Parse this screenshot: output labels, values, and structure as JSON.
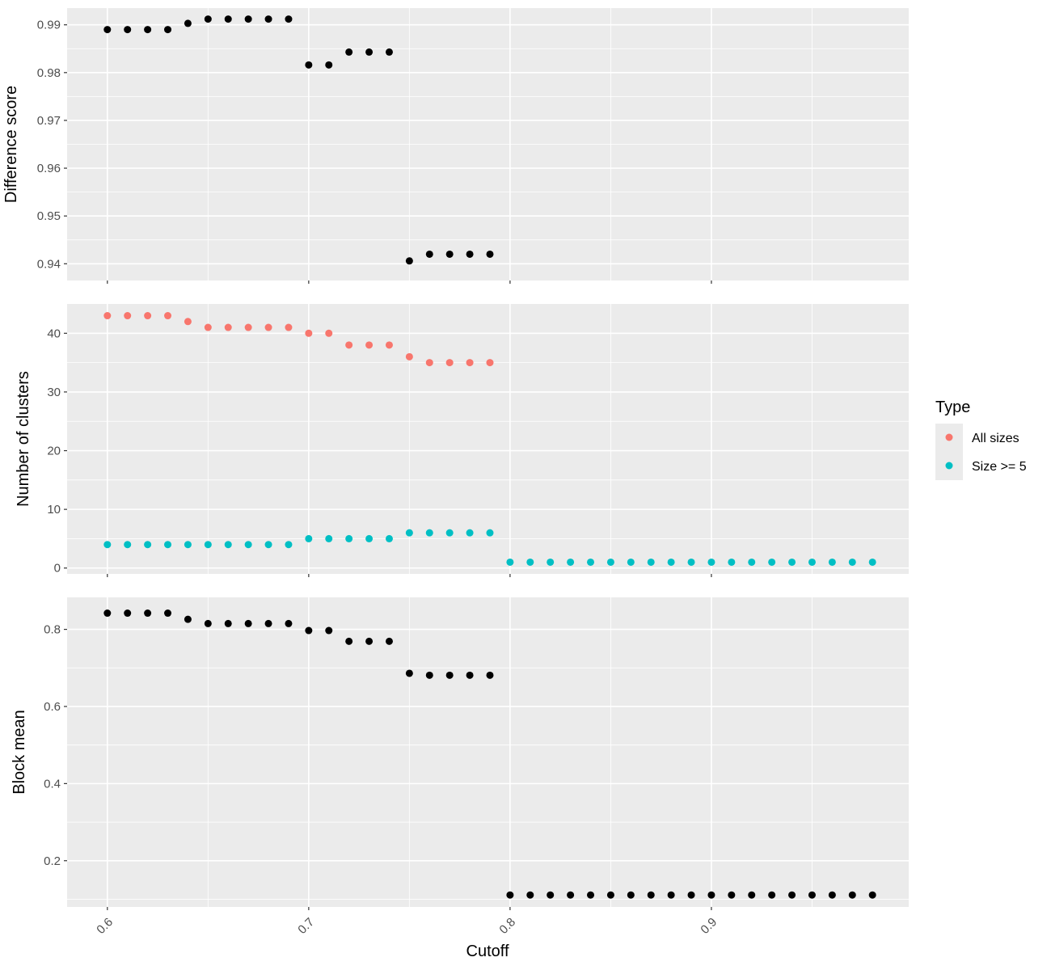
{
  "chart_data": {
    "type": "scatter",
    "xlabel": "Cutoff",
    "x_ticks": [
      0.6,
      0.7,
      0.8,
      0.9
    ],
    "x_tick_labels": [
      "0.6",
      "0.7",
      "0.8",
      "0.9"
    ],
    "xlim": [
      0.58,
      0.998
    ],
    "legend": {
      "title": "Type",
      "placement": "right",
      "entries": [
        {
          "label": "All sizes",
          "color": "#F8766D"
        },
        {
          "label": "Size >= 5",
          "color": "#00BFC4"
        }
      ]
    },
    "panels": [
      {
        "ylabel": "Difference score",
        "ylim": [
          0.9365,
          0.9935
        ],
        "y_ticks": [
          0.94,
          0.95,
          0.96,
          0.97,
          0.98,
          0.99
        ],
        "y_tick_labels": [
          "0.94",
          "0.95",
          "0.96",
          "0.97",
          "0.98",
          "0.99"
        ],
        "series": [
          {
            "color": "#000000",
            "x": [
              0.6,
              0.61,
              0.62,
              0.63,
              0.64,
              0.65,
              0.66,
              0.67,
              0.68,
              0.69,
              0.7,
              0.71,
              0.72,
              0.73,
              0.74,
              0.75,
              0.76,
              0.77,
              0.78,
              0.79
            ],
            "y": [
              0.989,
              0.989,
              0.989,
              0.989,
              0.9903,
              0.9912,
              0.9912,
              0.9912,
              0.9912,
              0.9912,
              0.9816,
              0.9816,
              0.9843,
              0.9843,
              0.9843,
              0.9406,
              0.942,
              0.942,
              0.942,
              0.942
            ]
          }
        ]
      },
      {
        "ylabel": "Number of clusters",
        "ylim": [
          -1.0,
          45.0
        ],
        "y_ticks": [
          0,
          10,
          20,
          30,
          40
        ],
        "y_tick_labels": [
          "0",
          "10",
          "20",
          "30",
          "40"
        ],
        "series": [
          {
            "name": "All sizes",
            "color": "#F8766D",
            "x": [
              0.6,
              0.61,
              0.62,
              0.63,
              0.64,
              0.65,
              0.66,
              0.67,
              0.68,
              0.69,
              0.7,
              0.71,
              0.72,
              0.73,
              0.74,
              0.75,
              0.76,
              0.77,
              0.78,
              0.79
            ],
            "y": [
              43,
              43,
              43,
              43,
              42,
              41,
              41,
              41,
              41,
              41,
              40,
              40,
              38,
              38,
              38,
              36,
              35,
              35,
              35,
              35
            ]
          },
          {
            "name": "Size >= 5",
            "color": "#00BFC4",
            "x": [
              0.6,
              0.61,
              0.62,
              0.63,
              0.64,
              0.65,
              0.66,
              0.67,
              0.68,
              0.69,
              0.7,
              0.71,
              0.72,
              0.73,
              0.74,
              0.75,
              0.76,
              0.77,
              0.78,
              0.79,
              0.8,
              0.81,
              0.82,
              0.83,
              0.84,
              0.85,
              0.86,
              0.87,
              0.88,
              0.89,
              0.9,
              0.91,
              0.92,
              0.93,
              0.94,
              0.95,
              0.96,
              0.97,
              0.98
            ],
            "y": [
              4,
              4,
              4,
              4,
              4,
              4,
              4,
              4,
              4,
              4,
              5,
              5,
              5,
              5,
              5,
              6,
              6,
              6,
              6,
              6,
              1,
              1,
              1,
              1,
              1,
              1,
              1,
              1,
              1,
              1,
              1,
              1,
              1,
              1,
              1,
              1,
              1,
              1,
              1
            ]
          }
        ]
      },
      {
        "ylabel": "Block mean",
        "ylim": [
          0.08,
          0.883
        ],
        "y_ticks": [
          0.2,
          0.4,
          0.6,
          0.8
        ],
        "y_tick_labels": [
          "0.2",
          "0.4",
          "0.6",
          "0.8"
        ],
        "series": [
          {
            "color": "#000000",
            "x": [
              0.6,
              0.61,
              0.62,
              0.63,
              0.64,
              0.65,
              0.66,
              0.67,
              0.68,
              0.69,
              0.7,
              0.71,
              0.72,
              0.73,
              0.74,
              0.75,
              0.76,
              0.77,
              0.78,
              0.79,
              0.8,
              0.81,
              0.82,
              0.83,
              0.84,
              0.85,
              0.86,
              0.87,
              0.88,
              0.89,
              0.9,
              0.91,
              0.92,
              0.93,
              0.94,
              0.95,
              0.96,
              0.97,
              0.98
            ],
            "y": [
              0.842,
              0.842,
              0.842,
              0.842,
              0.826,
              0.815,
              0.815,
              0.815,
              0.815,
              0.815,
              0.797,
              0.797,
              0.769,
              0.769,
              0.769,
              0.686,
              0.681,
              0.681,
              0.681,
              0.681,
              0.111,
              0.111,
              0.111,
              0.111,
              0.111,
              0.111,
              0.111,
              0.111,
              0.111,
              0.111,
              0.111,
              0.111,
              0.111,
              0.111,
              0.111,
              0.111,
              0.111,
              0.111,
              0.111
            ]
          }
        ]
      }
    ]
  }
}
